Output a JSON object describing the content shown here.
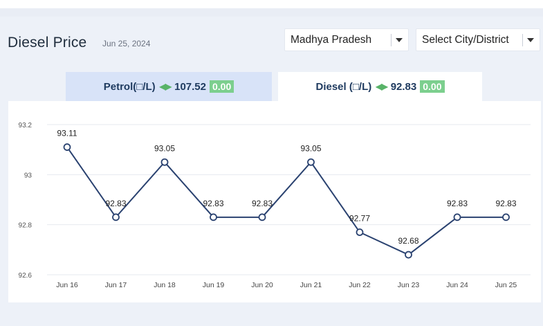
{
  "header": {
    "title": "Diesel Price",
    "date": "Jun 25, 2024"
  },
  "filters": {
    "state": "Madhya Pradesh",
    "city_placeholder": "Select City/District"
  },
  "tabs": [
    {
      "label": "Petrol(□/L)",
      "price": "107.52",
      "change": "0.00",
      "active": false
    },
    {
      "label": "Diesel (□/L)",
      "price": "92.83",
      "change": "0.00",
      "active": true
    }
  ],
  "colors": {
    "line": "#2a4270",
    "grid": "#e6e9ef",
    "change_badge": "#7ccf8e",
    "arrows": "#58b368"
  },
  "chart_data": {
    "type": "line",
    "categories": [
      "Jun 16",
      "Jun 17",
      "Jun 18",
      "Jun 19",
      "Jun 20",
      "Jun 21",
      "Jun 22",
      "Jun 23",
      "Jun 24",
      "Jun 25"
    ],
    "values": [
      93.11,
      92.83,
      93.05,
      92.83,
      92.83,
      93.05,
      92.77,
      92.68,
      92.83,
      92.83
    ],
    "labels": [
      "93.11",
      "92.83",
      "93.05",
      "92.83",
      "92.83",
      "93.05",
      "92.77",
      "92.68",
      "92.83",
      "92.83"
    ],
    "yticks": [
      "92.6",
      "92.8",
      "93",
      "93.2"
    ],
    "ylim": [
      92.6,
      93.2
    ],
    "grid": true
  }
}
